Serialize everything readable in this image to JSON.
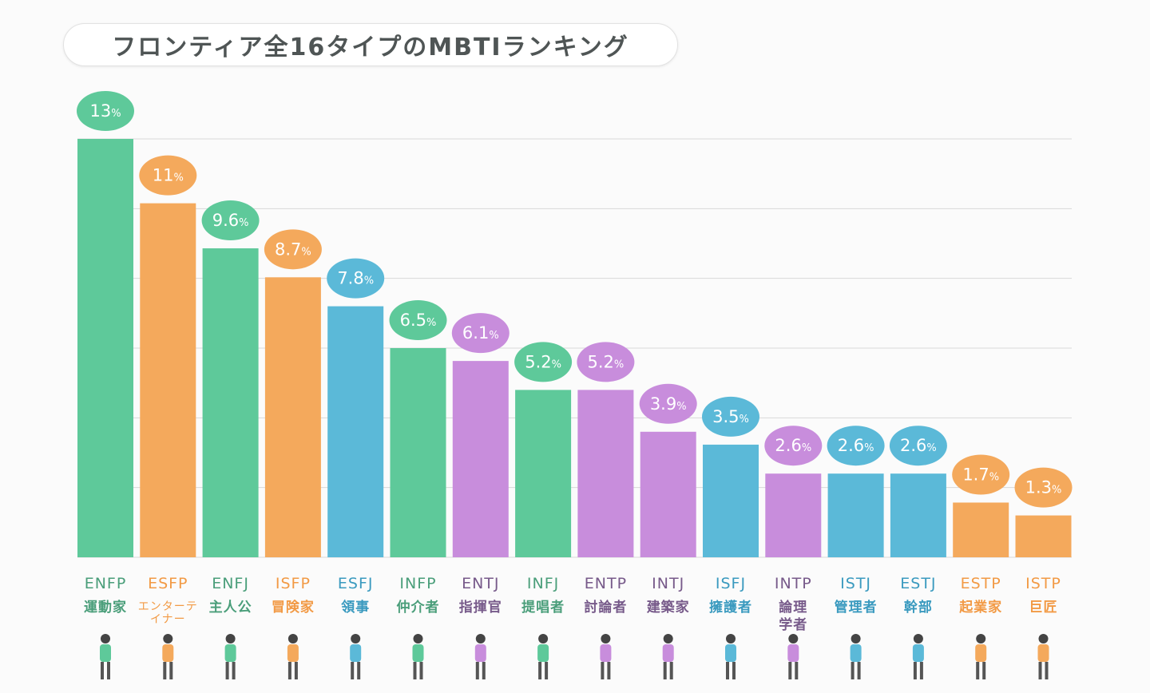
{
  "title": "フロンティア全16タイプのMBTIランキング",
  "colors": {
    "NF": "#5ec99a",
    "SP": "#f4a95c",
    "SJ": "#5bb9d8",
    "NT": "#c88ddc"
  },
  "text_colors": {
    "NF": "#4a9e7a",
    "SP": "#f29a45",
    "SJ": "#3a9abf",
    "NT": "#775a8a"
  },
  "chart_data": {
    "type": "bar",
    "title": "フロンティア全16タイプのMBTIランキング",
    "unit": "%",
    "ylim": [
      0,
      13
    ],
    "grid": true,
    "categories": [
      "ENFP",
      "ESFP",
      "ENFJ",
      "ISFP",
      "ESFJ",
      "INFP",
      "ENTJ",
      "INFJ",
      "ENTP",
      "INTJ",
      "ISFJ",
      "INTP",
      "ISTJ",
      "ESTJ",
      "ESTP",
      "ISTP"
    ],
    "names": [
      "運動家",
      "エンターテイナー",
      "主人公",
      "冒険家",
      "領事",
      "仲介者",
      "指揮官",
      "提唱者",
      "討論者",
      "建築家",
      "擁護者",
      "論理学者",
      "管理者",
      "幹部",
      "起業家",
      "巨匠"
    ],
    "groups": [
      "NF",
      "SP",
      "NF",
      "SP",
      "SJ",
      "NF",
      "NT",
      "NF",
      "NT",
      "NT",
      "SJ",
      "NT",
      "SJ",
      "SJ",
      "SP",
      "SP"
    ],
    "values": [
      13,
      11,
      9.6,
      8.7,
      7.8,
      6.5,
      6.1,
      5.2,
      5.2,
      3.9,
      3.5,
      2.6,
      2.6,
      2.6,
      1.7,
      1.3
    ],
    "value_labels": [
      "13",
      "11",
      "9.6",
      "8.7",
      "7.8",
      "6.5",
      "6.1",
      "5.2",
      "5.2",
      "3.9",
      "3.5",
      "2.6",
      "2.6",
      "2.6",
      "1.7",
      "1.3"
    ]
  }
}
